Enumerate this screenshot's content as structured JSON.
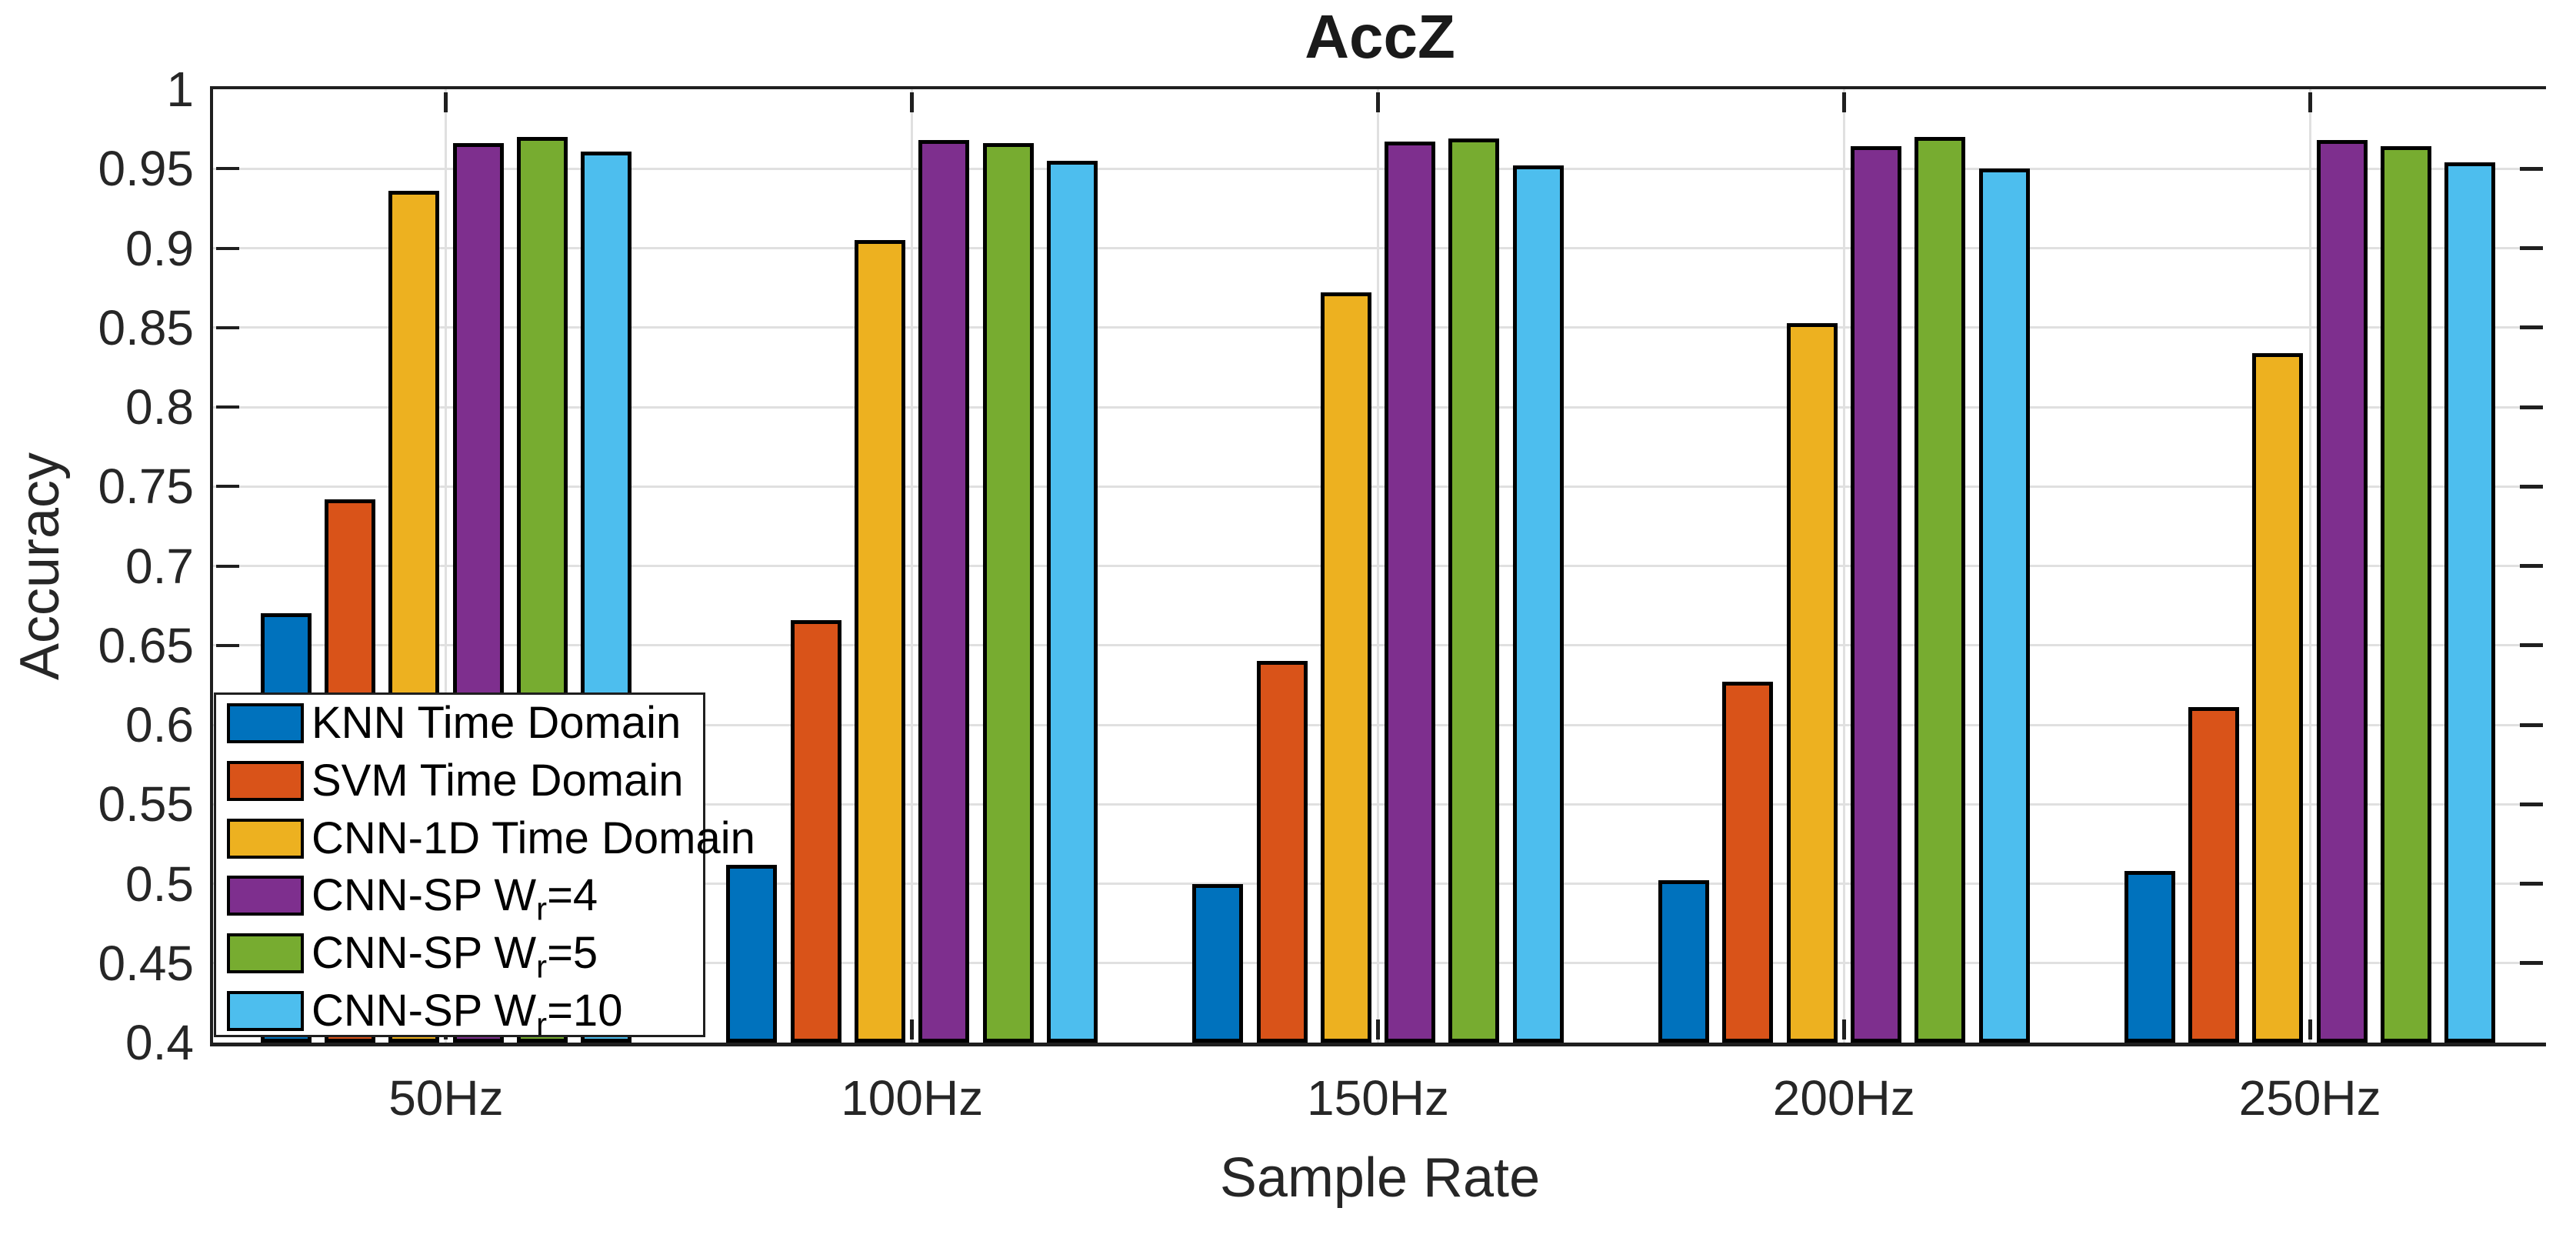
{
  "title": "AccZ",
  "axes": {
    "xlabel": "Sample Rate",
    "ylabel": "Accuracy"
  },
  "colors": {
    "background": "#FFFFFF",
    "axis_line": "#1f1f1f",
    "grid_line": "#E0E0E0",
    "bar_edge": "#000000",
    "text": "#262626"
  },
  "chart_data": {
    "type": "bar",
    "title": "AccZ",
    "xlabel": "Sample Rate",
    "ylabel": "Accuracy",
    "categories": [
      "50Hz",
      "100Hz",
      "150Hz",
      "200Hz",
      "250Hz"
    ],
    "series": [
      {
        "name": "KNN Time Domain",
        "label_pre": "KNN Time Domain",
        "label_sub": "",
        "label_post": "",
        "color": "#0072BD",
        "values": [
          0.67,
          0.512,
          0.5,
          0.502,
          0.508
        ]
      },
      {
        "name": "SVM Time Domain",
        "label_pre": "SVM Time Domain",
        "label_sub": "",
        "label_post": "",
        "color": "#D95319",
        "values": [
          0.742,
          0.666,
          0.64,
          0.627,
          0.611
        ]
      },
      {
        "name": "CNN-1D Time Domain",
        "label_pre": "CNN-1D Time Domain",
        "label_sub": "",
        "label_post": "",
        "color": "#EDB120",
        "values": [
          0.936,
          0.905,
          0.872,
          0.853,
          0.834
        ]
      },
      {
        "name": "CNN-SP Wr=4",
        "label_pre": "CNN-SP W",
        "label_sub": "r",
        "label_post": "=4",
        "color": "#7E2F8E",
        "values": [
          0.966,
          0.968,
          0.967,
          0.964,
          0.968
        ]
      },
      {
        "name": "CNN-SP Wr=5",
        "label_pre": "CNN-SP W",
        "label_sub": "r",
        "label_post": "=5",
        "color": "#77AC30",
        "values": [
          0.97,
          0.966,
          0.969,
          0.97,
          0.964
        ]
      },
      {
        "name": "CNN-SP Wr=10",
        "label_pre": "CNN-SP W",
        "label_sub": "r",
        "label_post": "=10",
        "color": "#4DBEEE",
        "values": [
          0.961,
          0.955,
          0.952,
          0.95,
          0.954
        ]
      }
    ],
    "ylim": [
      0.4,
      1.0
    ],
    "y_ticks": [
      1,
      0.95,
      0.9,
      0.85,
      0.8,
      0.75,
      0.7,
      0.65,
      0.6,
      0.55,
      0.5,
      0.45,
      0.4
    ],
    "y_tick_labels": [
      "1",
      "0.95",
      "0.9",
      "0.85",
      "0.8",
      "0.75",
      "0.7",
      "0.65",
      "0.6",
      "0.55",
      "0.5",
      "0.45",
      "0.4"
    ],
    "grid": true,
    "legend_position": "southwest"
  }
}
